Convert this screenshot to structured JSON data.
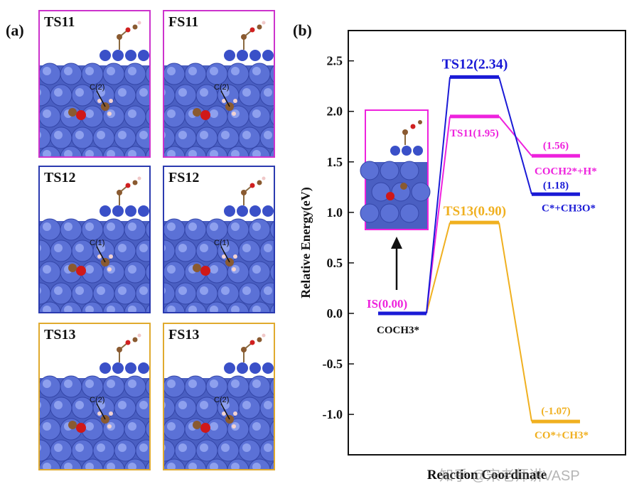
{
  "figure": {
    "panel_a_label": "(a)",
    "panel_b_label": "(b)"
  },
  "structures": [
    {
      "id": "TS11",
      "label": "TS11",
      "color": "#cc33cc",
      "annotation": "C(2)"
    },
    {
      "id": "FS11",
      "label": "FS11",
      "color": "#cc33cc",
      "annotation": "C(2)"
    },
    {
      "id": "TS12",
      "label": "TS12",
      "color": "#2b3bb0",
      "annotation": "C(1)"
    },
    {
      "id": "FS12",
      "label": "FS12",
      "color": "#2b3bb0",
      "annotation": "C(1)"
    },
    {
      "id": "TS13",
      "label": "TS13",
      "color": "#e0aa2e",
      "annotation": "C(2)"
    },
    {
      "id": "FS13",
      "label": "FS13",
      "color": "#e0aa2e",
      "annotation": "C(2)"
    }
  ],
  "chart_data": {
    "type": "line",
    "title": "",
    "xlabel": "Reaction Coordinate",
    "ylabel": "Relative Energy(eV)",
    "ylim": [
      -1.4,
      2.8
    ],
    "yticks": [
      -1.0,
      -0.5,
      0.0,
      0.5,
      1.0,
      1.5,
      2.0,
      2.5
    ],
    "ytick_labels": [
      "-1.0",
      "-0.5",
      "0.0",
      "0.5",
      "1.0",
      "1.5",
      "2.0",
      "2.5"
    ],
    "stage_positions": [
      0,
      1,
      2
    ],
    "series": [
      {
        "name": "TS12 path",
        "color": "#1a1ad6",
        "levels": [
          0.0,
          2.34,
          1.18
        ],
        "labels": [
          "",
          "TS12(2.34)",
          "(1.18)"
        ],
        "product": "C*+CH3O*"
      },
      {
        "name": "TS11 path",
        "color": "#ee22dd",
        "levels": [
          0.0,
          1.95,
          1.56
        ],
        "labels": [
          "IS(0.00)",
          "TS11(1.95)",
          "(1.56)"
        ],
        "product": "COCH2*+H*"
      },
      {
        "name": "TS13 path",
        "color": "#f0b020",
        "levels": [
          0.0,
          0.9,
          -1.07
        ],
        "labels": [
          "",
          "TS13(0.90)",
          "(-1.07)"
        ],
        "product": "CO*+CH3*"
      }
    ],
    "reactant_label": "COCH3*",
    "inset": "IS structure"
  },
  "watermark": "知乎 @宋老师讲VASP"
}
